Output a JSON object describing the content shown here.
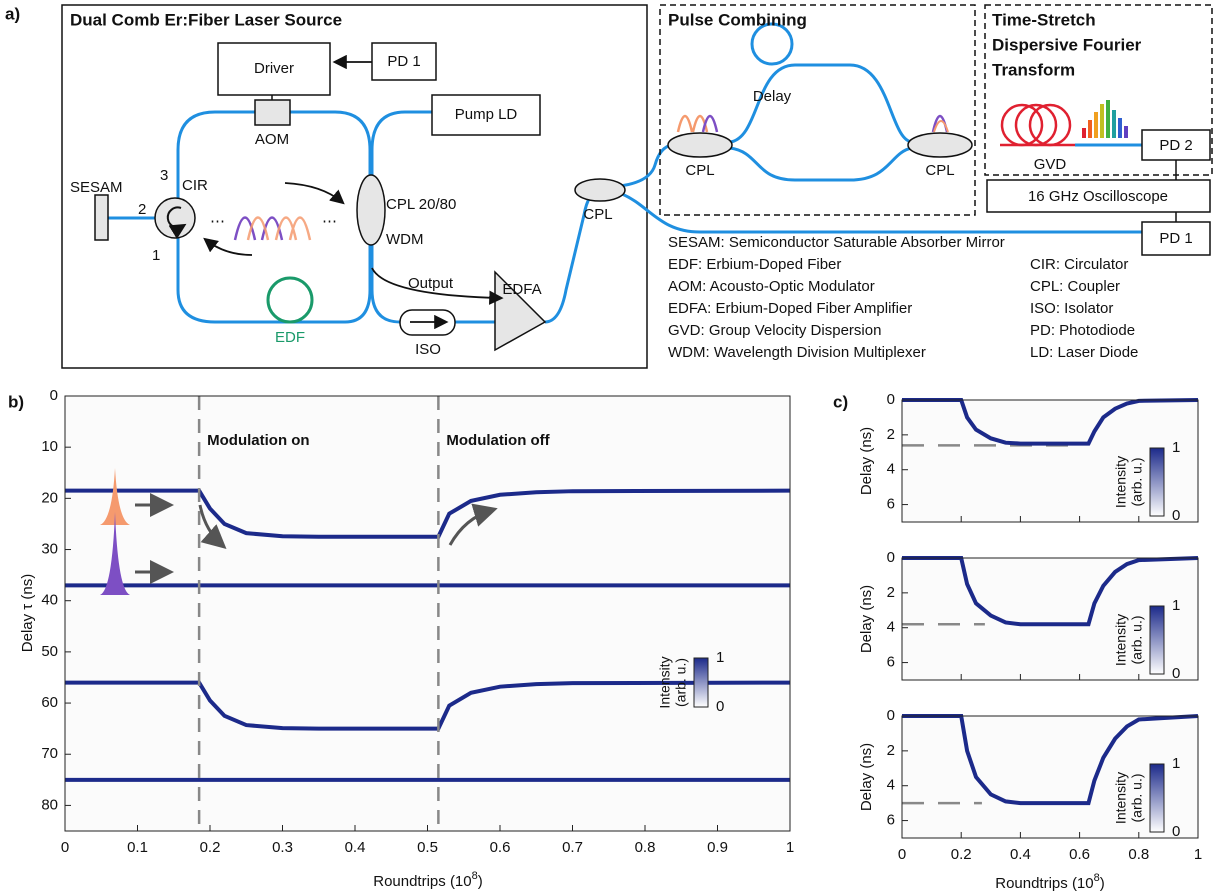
{
  "panel_a": {
    "label": "a)",
    "laser_source": {
      "title": "Dual Comb Er:Fiber Laser Source",
      "driver": "Driver",
      "pd1": "PD 1",
      "aom": "AOM",
      "pump": "Pump LD",
      "sesam": "SESAM",
      "cir": "CIR",
      "port_1": "1",
      "port_2": "2",
      "port_3": "3",
      "coupler": "CPL 20/80",
      "wdm": "WDM",
      "edf": "EDF",
      "output": "Output",
      "iso": "ISO",
      "edfa": "EDFA",
      "cpl": "CPL"
    },
    "pulse_combining": {
      "title": "Pulse Combining",
      "delay": "Delay",
      "cpl_in": "CPL",
      "cpl_out": "CPL"
    },
    "dft": {
      "title": [
        "Time-Stretch",
        "Dispersive Fourier",
        "Transform"
      ],
      "gvd": "GVD",
      "pd2": "PD 2"
    },
    "oscilloscope": "16 GHz Oscilloscope",
    "pd1": "PD 1",
    "legend": {
      "left": [
        "SESAM: Semiconductor Saturable Absorber Mirror",
        "EDF: Erbium-Doped Fiber",
        "AOM: Acousto-Optic Modulator",
        "EDFA: Erbium-Doped Fiber Amplifier",
        "GVD: Group Velocity Dispersion",
        "WDM: Wavelength Division Multiplexer"
      ],
      "right": [
        "CIR: Circulator",
        "CPL: Coupler",
        "ISO: Isolator",
        "PD: Photodiode",
        "LD: Laser Diode"
      ]
    }
  },
  "panel_b": {
    "label": "b)",
    "type": "line",
    "x_label": {
      "base": "Roundtrips (10",
      "exponent": "8",
      "end": ")"
    },
    "y_label": "Delay τ (ns)",
    "xlim": [
      0,
      1
    ],
    "xticks": [
      0,
      0.1,
      0.2,
      0.3,
      0.4,
      0.5,
      0.6,
      0.7,
      0.8,
      0.9,
      1
    ],
    "ylim": [
      0,
      85
    ],
    "yticks": [
      0,
      10,
      20,
      30,
      40,
      50,
      60,
      70,
      80
    ],
    "annotations": [
      {
        "text": "Modulation on",
        "x": 0.185
      },
      {
        "text": "Modulation off",
        "x": 0.515
      }
    ],
    "series": [
      {
        "color": "#1c2a8a",
        "x": [
          0,
          0.185,
          0.2,
          0.22,
          0.25,
          0.3,
          0.35,
          0.515,
          0.53,
          0.56,
          0.6,
          0.65,
          0.7,
          1
        ],
        "values": [
          18.5,
          18.5,
          22,
          25,
          26.8,
          27.4,
          27.5,
          27.5,
          23,
          20.5,
          19.3,
          18.8,
          18.6,
          18.5
        ]
      },
      {
        "color": "#1c2a8a",
        "x": [
          0,
          1
        ],
        "values": [
          37,
          37
        ]
      },
      {
        "color": "#1c2a8a",
        "x": [
          0,
          0.185,
          0.2,
          0.22,
          0.25,
          0.3,
          0.35,
          0.515,
          0.53,
          0.56,
          0.6,
          0.65,
          0.7,
          1
        ],
        "values": [
          56,
          56,
          59.5,
          62.5,
          64.3,
          64.9,
          65,
          65,
          60.5,
          58,
          56.8,
          56.3,
          56.1,
          56
        ]
      },
      {
        "color": "#1c2a8a",
        "x": [
          0,
          1
        ],
        "values": [
          75,
          75
        ]
      }
    ],
    "colorbar": {
      "label": [
        "Intensity",
        "(arb. u.)"
      ],
      "ticks": [
        0,
        1
      ]
    }
  },
  "panel_c": {
    "label": "c)",
    "type": "line",
    "x_label": {
      "base": "Roundtrips (10",
      "exponent": "8",
      "end": ")"
    },
    "xlim": [
      0,
      1
    ],
    "xticks": [
      0,
      0.2,
      0.4,
      0.6,
      0.8,
      1
    ],
    "colorbar": {
      "label": [
        "Intensity",
        "(arb. u.)"
      ],
      "ticks": [
        0,
        1
      ]
    },
    "subplots": [
      {
        "y_label": "Delay (ns)",
        "ylim": [
          0,
          7
        ],
        "yticks": [
          0,
          2,
          4,
          6
        ],
        "reference": {
          "level": 2.6,
          "x": [
            0,
            0.6
          ]
        },
        "series": {
          "color": "#1c2a8a",
          "x": [
            0,
            0.2,
            0.22,
            0.25,
            0.3,
            0.35,
            0.4,
            0.63,
            0.65,
            0.68,
            0.72,
            0.76,
            0.8,
            1
          ],
          "values": [
            0,
            0,
            1.0,
            1.7,
            2.2,
            2.45,
            2.5,
            2.5,
            1.8,
            1.0,
            0.5,
            0.2,
            0.05,
            0
          ]
        }
      },
      {
        "y_label": "Delay (ns)",
        "ylim": [
          0,
          7
        ],
        "yticks": [
          0,
          2,
          4,
          6
        ],
        "reference": {
          "level": 3.8,
          "x": [
            0,
            0.28
          ]
        },
        "series": {
          "color": "#1c2a8a",
          "x": [
            0,
            0.2,
            0.22,
            0.25,
            0.3,
            0.35,
            0.4,
            0.63,
            0.65,
            0.68,
            0.72,
            0.76,
            0.8,
            1
          ],
          "values": [
            0,
            0,
            1.5,
            2.6,
            3.3,
            3.7,
            3.8,
            3.8,
            2.6,
            1.6,
            0.8,
            0.35,
            0.12,
            0
          ]
        }
      },
      {
        "y_label": "Delay (ns)",
        "ylim": [
          0,
          7
        ],
        "yticks": [
          0,
          2,
          4,
          6
        ],
        "reference": {
          "level": 5,
          "x": [
            0,
            0.27
          ]
        },
        "series": {
          "color": "#1c2a8a",
          "x": [
            0,
            0.2,
            0.22,
            0.25,
            0.3,
            0.35,
            0.4,
            0.63,
            0.65,
            0.68,
            0.72,
            0.76,
            0.8,
            1
          ],
          "values": [
            0,
            0,
            2,
            3.5,
            4.5,
            4.9,
            5,
            5,
            3.7,
            2.4,
            1.3,
            0.6,
            0.2,
            0
          ]
        }
      }
    ]
  }
}
